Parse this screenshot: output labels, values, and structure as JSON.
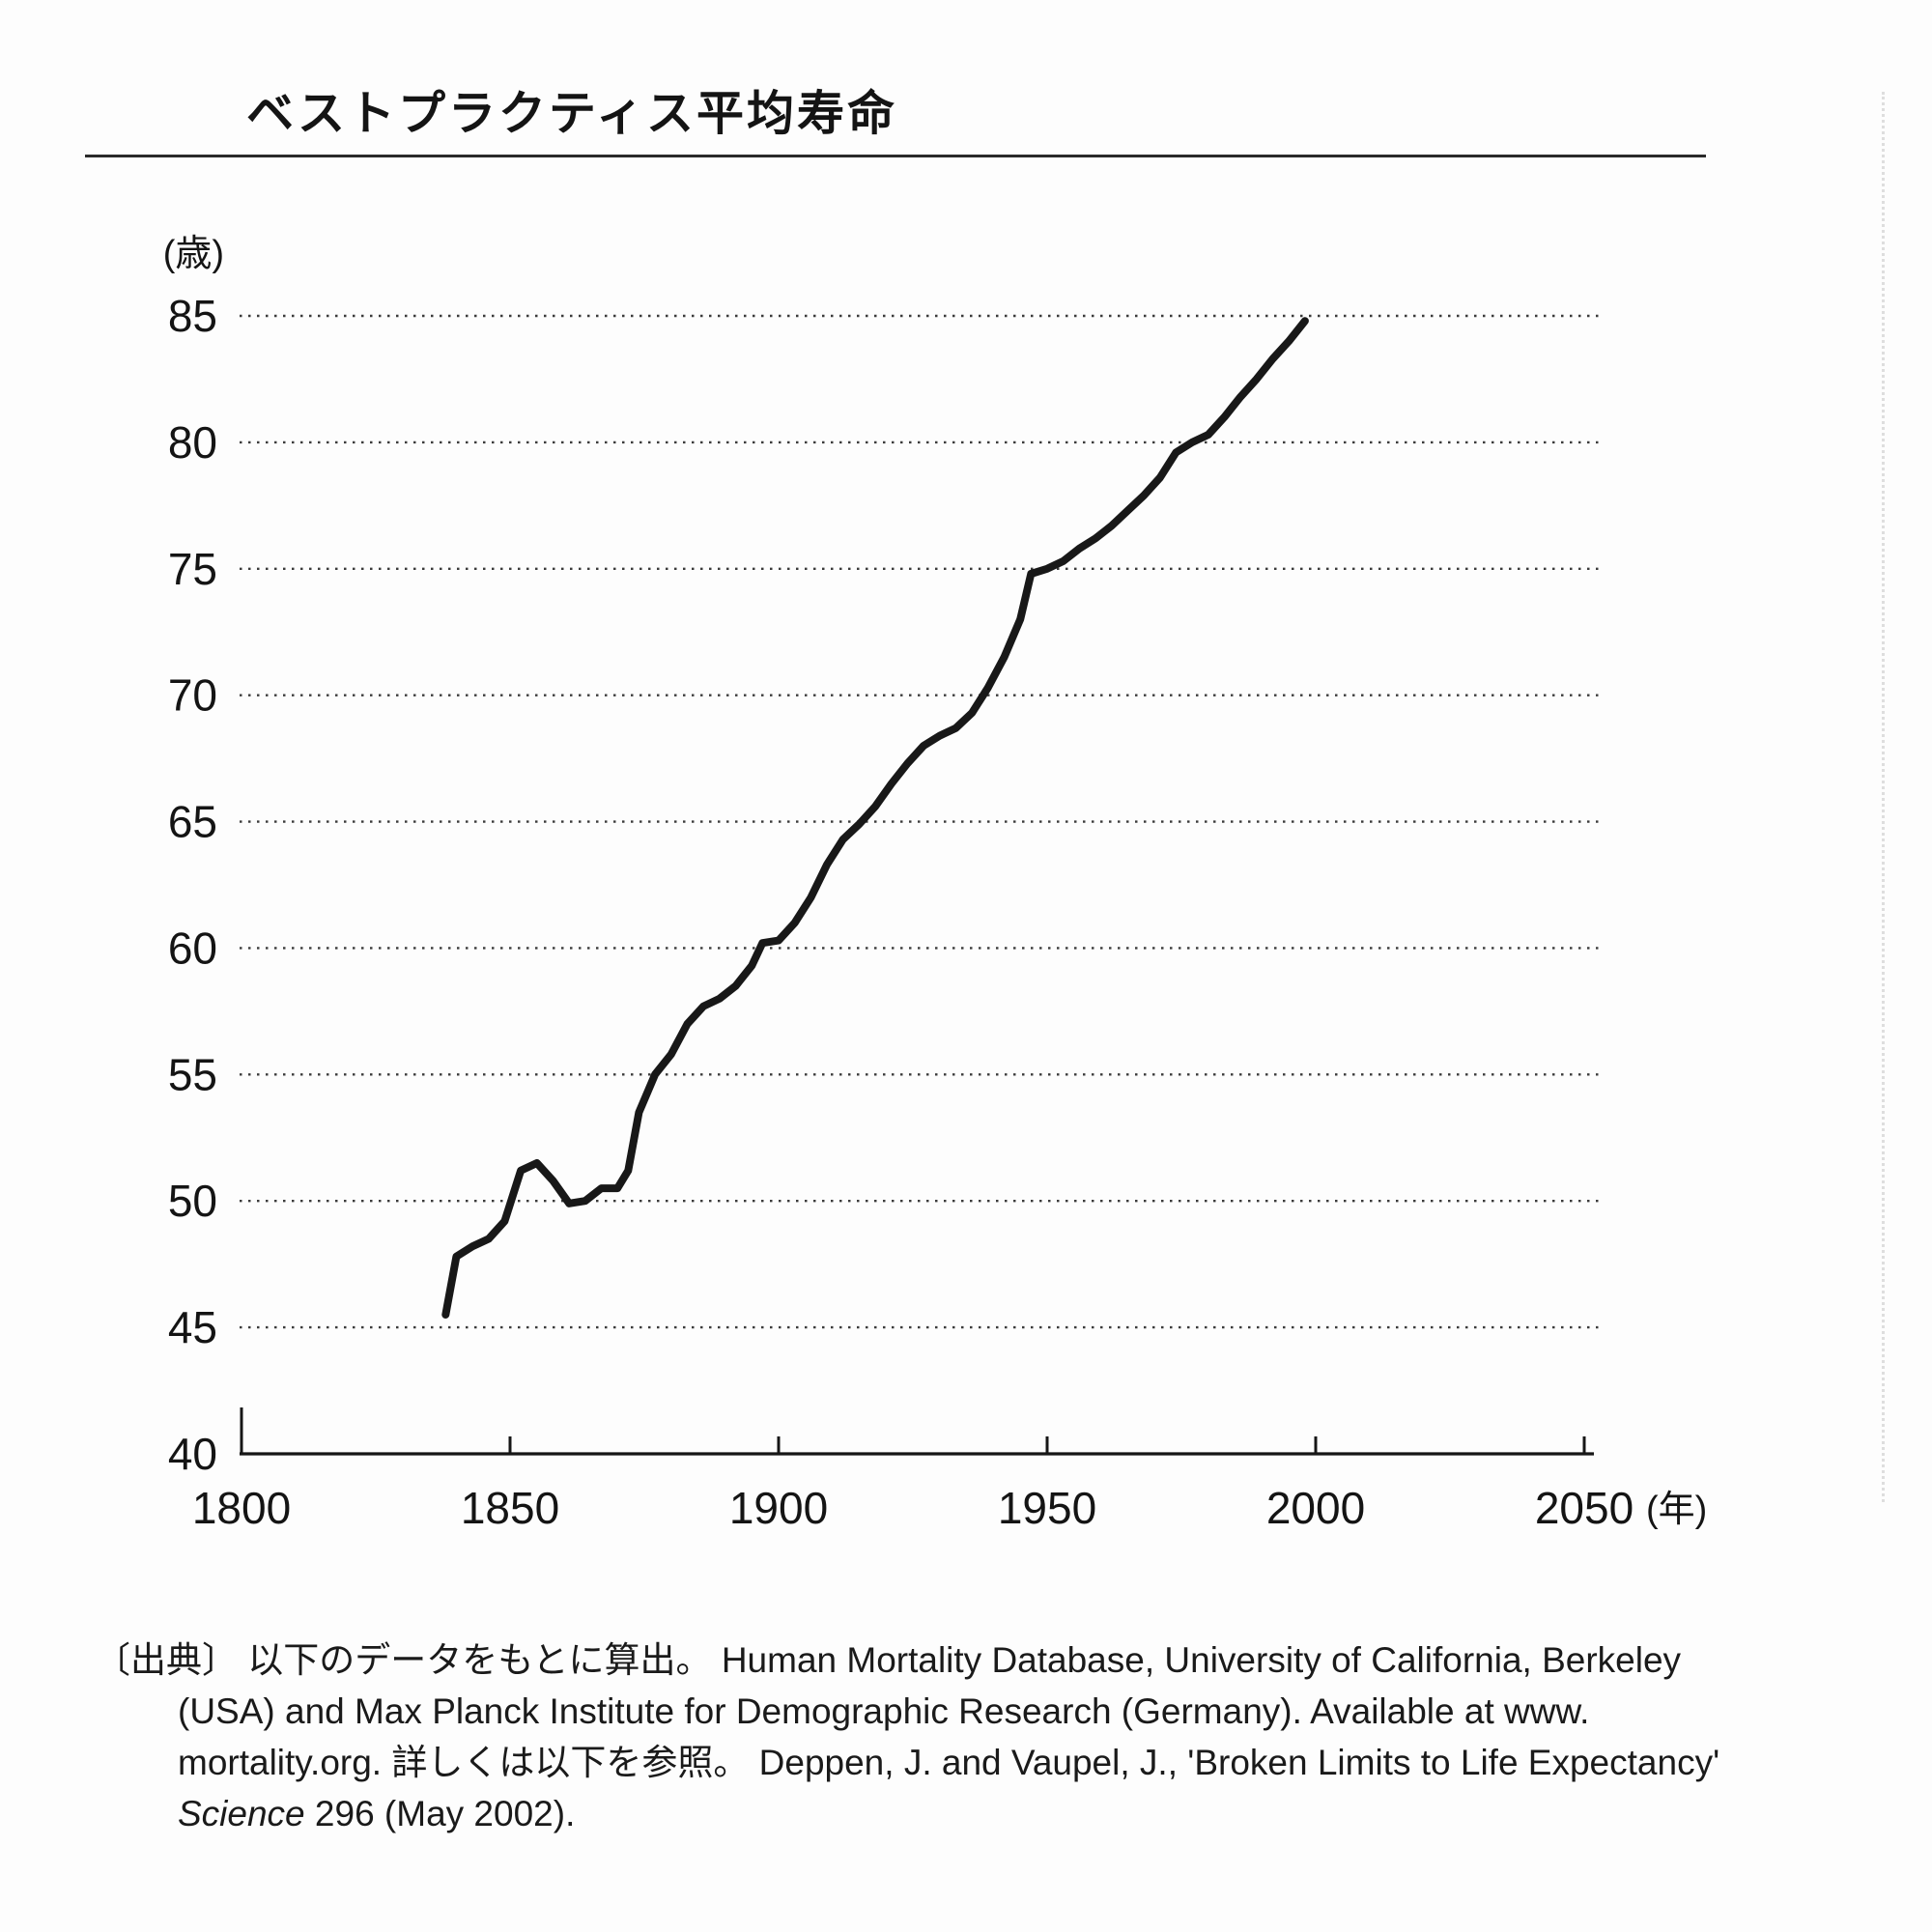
{
  "source": {
    "line1": "〔出典〕 以下のデータをもとに算出。 Human Mortality Database, University of California, Berkeley",
    "line2": "(USA) and Max Planck Institute for Demographic Research (Germany). Available at www.",
    "line3": "mortality.org. 詳しくは以下を参照。 Deppen, J. and Vaupel, J., 'Broken Limits to Life Expectancy'",
    "line4_italic": "Science",
    "line4_rest": " 296 (May 2002)."
  },
  "chart_data": {
    "type": "line",
    "title": "ベストプラクティス平均寿命",
    "ylabel": "(歳)",
    "xlabel_suffix": "(年)",
    "xlim": [
      1800,
      2050
    ],
    "ylim": [
      40,
      85
    ],
    "xticks": [
      1800,
      1850,
      1900,
      1950,
      2000,
      2050
    ],
    "yticks": [
      40,
      45,
      50,
      55,
      60,
      65,
      70,
      75,
      80,
      85
    ],
    "grid": "horizontal dotted lines at y ticks 45-85",
    "legend": "none",
    "series": [
      {
        "name": "best-practice-life-expectancy",
        "points": [
          [
            1838,
            45.5
          ],
          [
            1840,
            47.8
          ],
          [
            1843,
            48.2
          ],
          [
            1846,
            48.5
          ],
          [
            1849,
            49.2
          ],
          [
            1852,
            51.2
          ],
          [
            1855,
            51.5
          ],
          [
            1858,
            50.8
          ],
          [
            1861,
            49.9
          ],
          [
            1864,
            50.0
          ],
          [
            1867,
            50.5
          ],
          [
            1870,
            50.5
          ],
          [
            1872,
            51.2
          ],
          [
            1874,
            53.5
          ],
          [
            1877,
            55.0
          ],
          [
            1880,
            55.8
          ],
          [
            1883,
            57.0
          ],
          [
            1886,
            57.7
          ],
          [
            1889,
            58.0
          ],
          [
            1892,
            58.5
          ],
          [
            1895,
            59.3
          ],
          [
            1897,
            60.2
          ],
          [
            1900,
            60.3
          ],
          [
            1903,
            61.0
          ],
          [
            1906,
            62.0
          ],
          [
            1909,
            63.3
          ],
          [
            1912,
            64.3
          ],
          [
            1915,
            64.9
          ],
          [
            1918,
            65.6
          ],
          [
            1921,
            66.5
          ],
          [
            1924,
            67.3
          ],
          [
            1927,
            68.0
          ],
          [
            1930,
            68.4
          ],
          [
            1933,
            68.7
          ],
          [
            1936,
            69.3
          ],
          [
            1939,
            70.3
          ],
          [
            1942,
            71.5
          ],
          [
            1945,
            73.0
          ],
          [
            1947,
            74.8
          ],
          [
            1950,
            75.0
          ],
          [
            1953,
            75.3
          ],
          [
            1956,
            75.8
          ],
          [
            1959,
            76.2
          ],
          [
            1962,
            76.7
          ],
          [
            1965,
            77.3
          ],
          [
            1968,
            77.9
          ],
          [
            1971,
            78.6
          ],
          [
            1974,
            79.6
          ],
          [
            1977,
            80.0
          ],
          [
            1980,
            80.3
          ],
          [
            1983,
            81.0
          ],
          [
            1986,
            81.8
          ],
          [
            1989,
            82.5
          ],
          [
            1992,
            83.3
          ],
          [
            1995,
            84.0
          ],
          [
            1998,
            84.8
          ]
        ]
      }
    ]
  }
}
